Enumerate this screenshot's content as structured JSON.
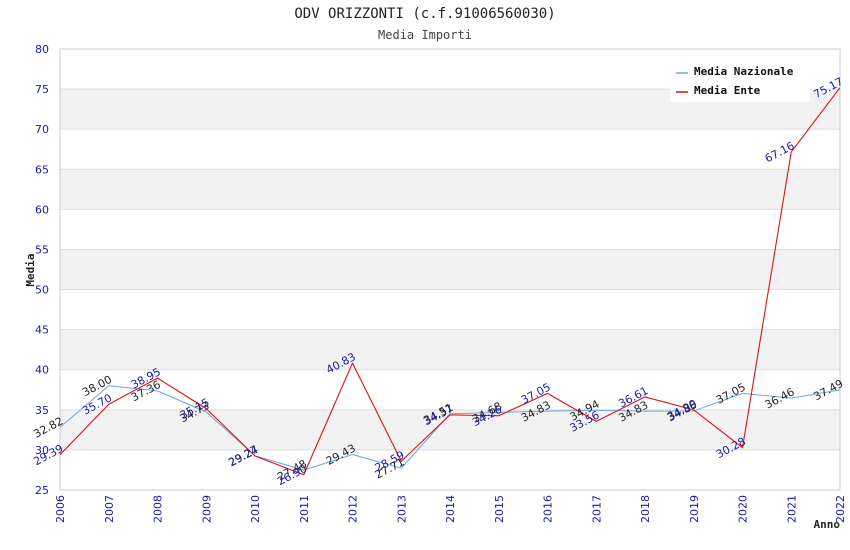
{
  "colors": {
    "media_nazionale": "#6aa8e0",
    "media_ente": "#e01010",
    "tick_label": "#1a1aa8",
    "band": "#f2f2f2",
    "grid": "#dddddd"
  },
  "chart_data": {
    "type": "line",
    "title": "ODV ORIZZONTI (c.f.91006560030)",
    "subtitle": "Media Importi",
    "xlabel": "Anno",
    "ylabel": "Media",
    "ylim": [
      25,
      80
    ],
    "y_ticks": [
      "25",
      "30",
      "35",
      "40",
      "45",
      "50",
      "55",
      "60",
      "65",
      "70",
      "75",
      "80"
    ],
    "x": [
      "2006",
      "2007",
      "2008",
      "2009",
      "2010",
      "2011",
      "2012",
      "2013",
      "2014",
      "2015",
      "2016",
      "2017",
      "2018",
      "2019",
      "2020",
      "2021",
      "2022"
    ],
    "grid": true,
    "legend_position": "top-right",
    "series": [
      {
        "name": "Media Nazionale",
        "values": [
          32.82,
          38.0,
          37.36,
          34.73,
          29.27,
          27.48,
          29.43,
          27.71,
          34.51,
          34.68,
          34.83,
          34.94,
          34.83,
          34.86,
          37.05,
          36.46,
          37.49
        ],
        "labels": [
          "32.82",
          "38.00",
          "37.36",
          "34.73",
          "29.27",
          "27.48",
          "29.43",
          "27.71",
          "34.51",
          "34.68",
          "34.83",
          "34.94",
          "34.83",
          "34.86",
          "37.05",
          "36.46",
          "37.49"
        ]
      },
      {
        "name": "Media Ente",
        "values": [
          29.39,
          35.7,
          38.95,
          35.15,
          29.24,
          26.9,
          40.83,
          28.59,
          34.37,
          34.26,
          37.05,
          33.56,
          36.61,
          34.99,
          30.28,
          67.16,
          75.17
        ],
        "labels": [
          "29.39",
          "35.70",
          "38.95",
          "35.15",
          "29.24",
          "26.90",
          "40.83",
          "28.59",
          "34.37",
          "34.26",
          "37.05",
          "33.56",
          "36.61",
          "34.99",
          "30.28",
          "67.16",
          "75.17"
        ]
      }
    ]
  }
}
